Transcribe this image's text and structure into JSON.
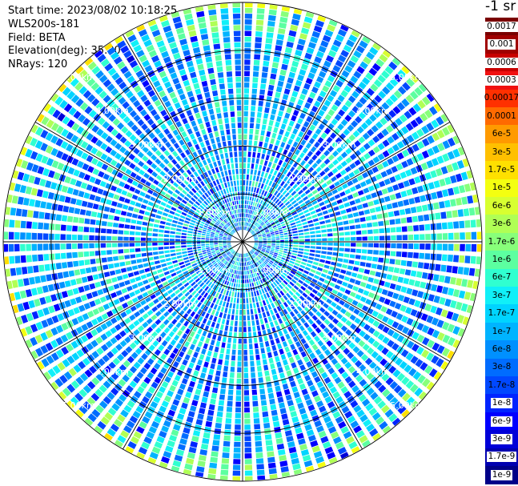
{
  "header": {
    "start_time": "Start time: 2023/08/02 10:18:25",
    "instrument": "WLS200s-181",
    "field": "Field: BETA",
    "elevation": "Elevation(deg): 35.30",
    "nrays": "NRays: 120"
  },
  "unit": "-1 sr",
  "chart_data": {
    "type": "heatmap",
    "projection": "polar-ppi",
    "n_rays": 120,
    "max_range_km": 5.0,
    "range_rings_km": [
      1,
      2,
      3,
      4,
      5
    ],
    "ring_labels": [
      "1.00km",
      "2.00km",
      "3.00km",
      "4.00km",
      "5.00km"
    ],
    "spoke_angles_deg": [
      0,
      30,
      60,
      90,
      120,
      150,
      180,
      210,
      240,
      270,
      300,
      330
    ],
    "color_scale": "jet-log",
    "value_range": [
      1e-09,
      0.0017
    ],
    "dominant_value_range": [
      1e-08,
      1e-06
    ],
    "high_value_band_km": [
      4.9,
      5.0
    ],
    "legend": {
      "labels": [
        "0.0017",
        "0.001",
        "0.0006",
        "0.0003",
        "0.00017",
        "0.0001",
        "6e-5",
        "3e-5",
        "1.7e-5",
        "1e-5",
        "6e-6",
        "3e-6",
        "1.7e-6",
        "1e-6",
        "6e-7",
        "3e-7",
        "1.7e-7",
        "1e-7",
        "6e-8",
        "3e-8",
        "1.7e-8",
        "1e-8",
        "6e-9",
        "3e-9",
        "1.7e-9",
        "1e-9"
      ],
      "colors": [
        "#7a0000",
        "#a00000",
        "#c80000",
        "#f01010",
        "#ff3000",
        "#ff6a00",
        "#ff9a00",
        "#ffc000",
        "#ffe000",
        "#f4ff10",
        "#d8ff30",
        "#b0ff55",
        "#88ff7a",
        "#5cffa0",
        "#30ffd0",
        "#10f0f8",
        "#00d4ff",
        "#00b4ff",
        "#0090ff",
        "#006cff",
        "#0048ff",
        "#0024ff",
        "#0000ff",
        "#0000d8",
        "#0000b0",
        "#000088"
      ]
    }
  }
}
